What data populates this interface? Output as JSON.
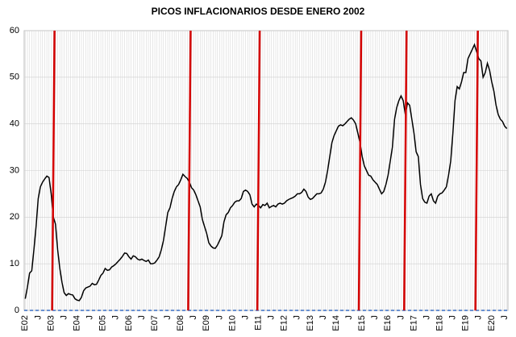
{
  "chart_data": {
    "type": "line",
    "title": "PICOS INFLACIONARIOS  DESDE ENERO 2002",
    "categories": [
      "E02",
      null,
      null,
      null,
      null,
      null,
      "J",
      null,
      null,
      null,
      null,
      null,
      "E03",
      null,
      null,
      null,
      null,
      null,
      "J",
      null,
      null,
      null,
      null,
      null,
      "E04",
      null,
      null,
      null,
      null,
      null,
      "J",
      null,
      null,
      null,
      null,
      null,
      "E05",
      null,
      null,
      null,
      null,
      null,
      "J",
      null,
      null,
      null,
      null,
      null,
      "E06",
      null,
      null,
      null,
      null,
      null,
      "J",
      null,
      null,
      null,
      null,
      null,
      "E07",
      null,
      null,
      null,
      null,
      null,
      "J",
      null,
      null,
      null,
      null,
      null,
      "E08",
      null,
      null,
      null,
      null,
      null,
      "J",
      null,
      null,
      null,
      null,
      null,
      "E09",
      null,
      null,
      null,
      null,
      null,
      "J",
      null,
      null,
      null,
      null,
      null,
      "E10",
      null,
      null,
      null,
      null,
      null,
      "J",
      null,
      null,
      null,
      null,
      null,
      "E11",
      null,
      null,
      null,
      null,
      null,
      "J",
      null,
      null,
      null,
      null,
      null,
      "E12",
      null,
      null,
      null,
      null,
      null,
      "J",
      null,
      null,
      null,
      null,
      null,
      "E13",
      null,
      null,
      null,
      null,
      null,
      "J",
      null,
      null,
      null,
      null,
      null,
      "E14",
      null,
      null,
      null,
      null,
      null,
      "J",
      null,
      null,
      null,
      null,
      null,
      "E15",
      null,
      null,
      null,
      null,
      null,
      "J",
      null,
      null,
      null,
      null,
      null,
      "E16",
      null,
      null,
      null,
      null,
      null,
      "J",
      null,
      null,
      null,
      null,
      null,
      "E17",
      null,
      null,
      null,
      null,
      null,
      "J",
      null,
      null,
      null,
      null,
      null,
      "E18",
      null,
      null,
      null,
      null,
      null,
      "J",
      null,
      null,
      null,
      null,
      null,
      "E19",
      null,
      null,
      null,
      null,
      null,
      "J",
      null,
      null,
      null,
      null,
      null,
      "E20",
      null,
      null,
      null,
      null,
      null,
      "J",
      null
    ],
    "values": [
      2.5,
      5,
      8,
      8.5,
      13,
      18,
      24,
      26.5,
      27.5,
      28.2,
      28.8,
      28.5,
      25,
      20,
      18.5,
      13,
      9,
      6,
      3.8,
      3.2,
      3.6,
      3.4,
      3.3,
      2.5,
      2.2,
      2.1,
      2.8,
      4.2,
      4.8,
      5,
      5.2,
      5.8,
      5.5,
      5.6,
      6.5,
      7.5,
      8,
      9,
      8.6,
      8.7,
      9.3,
      9.6,
      10,
      10.5,
      11,
      11.6,
      12.3,
      12.2,
      11.5,
      11,
      11.7,
      11.5,
      11,
      10.8,
      11,
      10.7,
      10.5,
      10.8,
      10,
      10,
      10.2,
      10.8,
      11.5,
      13,
      15,
      18,
      21,
      22,
      24,
      25.5,
      26.5,
      27,
      28,
      29.2,
      28.7,
      28.3,
      27.5,
      26.3,
      25.8,
      24.8,
      23.5,
      22.2,
      19.5,
      18,
      16.5,
      14.5,
      13.8,
      13.4,
      13.3,
      14,
      15,
      16,
      19,
      20.5,
      21,
      22,
      22.5,
      23.2,
      23.5,
      23.5,
      24,
      25.5,
      25.8,
      25.5,
      24.8,
      22.8,
      22.2,
      22.8,
      22.5,
      22,
      22.7,
      22.5,
      23,
      22,
      22.3,
      22.5,
      22.2,
      22.8,
      23,
      22.8,
      23,
      23.5,
      23.8,
      24,
      24.2,
      24.5,
      25,
      25,
      25.3,
      26,
      25.5,
      24.3,
      23.8,
      24,
      24.5,
      25,
      25,
      25.2,
      26,
      27.5,
      30,
      33,
      36,
      37.5,
      38.5,
      39.5,
      39.8,
      39.6,
      40,
      40.5,
      41,
      41.3,
      40.8,
      40,
      38,
      36,
      33,
      31,
      30,
      29,
      28.8,
      28,
      27.5,
      27,
      26,
      25,
      25.5,
      27,
      29,
      32,
      35,
      41,
      43.5,
      45,
      46,
      45,
      42,
      44.5,
      44,
      41,
      38,
      34,
      33,
      27,
      24,
      23.2,
      23,
      24.5,
      25,
      23.5,
      23,
      24.5,
      25,
      25.2,
      25.8,
      26.5,
      29,
      32,
      38,
      45,
      48,
      47.5,
      49,
      51,
      51,
      54,
      55,
      56,
      57,
      55.5,
      54,
      53.5,
      50,
      51,
      53,
      51.5,
      49,
      47,
      44,
      42,
      41,
      40.5,
      39.5,
      39
    ],
    "color": "#000000",
    "markers": [
      13,
      76,
      108,
      155,
      176,
      209
    ],
    "marker_color": "#d40000",
    "ylim": [
      0,
      60
    ],
    "yticks": [
      0,
      10,
      20,
      30,
      40,
      50,
      60
    ],
    "grid": true
  }
}
